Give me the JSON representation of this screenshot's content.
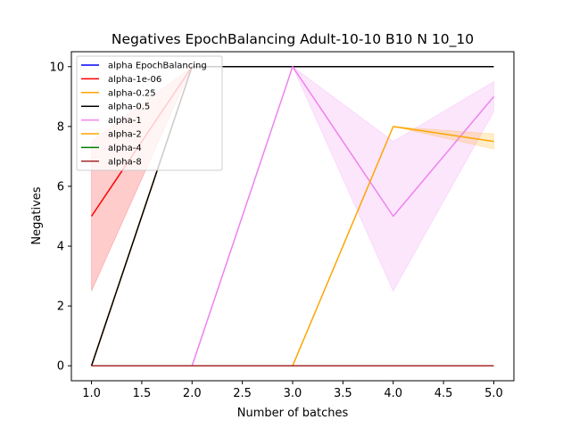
{
  "chart_data": {
    "type": "line",
    "title": "Negatives EpochBalancing Adult-10-10 B10 N 10_10",
    "xlabel": "Number of batches",
    "ylabel": "Negatives",
    "x": [
      1,
      2,
      3,
      4,
      5
    ],
    "xlim": [
      0.8,
      5.2
    ],
    "ylim": [
      -0.5,
      10.5
    ],
    "xticks": [
      "1.0",
      "1.5",
      "2.0",
      "2.5",
      "3.0",
      "3.5",
      "4.0",
      "4.5",
      "5.0"
    ],
    "yticks": [
      "0",
      "2",
      "4",
      "6",
      "8",
      "10"
    ],
    "grid": false,
    "legend_position": "top-left",
    "series": [
      {
        "name": "alpha EpochBalancing",
        "color": "#0000ff",
        "values": [
          0,
          0,
          0,
          0,
          0
        ],
        "lower": null,
        "upper": null
      },
      {
        "name": "alpha-1e-06",
        "color": "#ff0000",
        "values": [
          5,
          10,
          10,
          10,
          10
        ],
        "lower": [
          2.5,
          10,
          10,
          10,
          10
        ],
        "upper": [
          7.5,
          10,
          10,
          10,
          10
        ]
      },
      {
        "name": "alpha-0.25",
        "color": "#ffa500",
        "values": [
          0,
          10,
          10,
          10,
          10
        ],
        "lower": null,
        "upper": null
      },
      {
        "name": "alpha-0.5",
        "color": "#000000",
        "values": [
          0,
          10,
          10,
          10,
          10
        ],
        "lower": null,
        "upper": null
      },
      {
        "name": "alpha-1",
        "color": "#ee82ee",
        "values": [
          0,
          0,
          10,
          5,
          9
        ],
        "lower": [
          0,
          0,
          10,
          2.5,
          8.5
        ],
        "upper": [
          0,
          0,
          10,
          7.5,
          9.5
        ]
      },
      {
        "name": "alpha-2",
        "color": "#ffa500",
        "values": [
          0,
          0,
          0,
          8,
          7.5
        ],
        "lower": [
          0,
          0,
          0,
          8,
          7.25
        ],
        "upper": [
          0,
          0,
          0,
          8,
          7.75
        ]
      },
      {
        "name": "alpha-4",
        "color": "#008000",
        "values": [
          0,
          0,
          0,
          0,
          0
        ],
        "lower": null,
        "upper": null
      },
      {
        "name": "alpha-8",
        "color": "#a52a2a",
        "values": [
          0,
          0,
          0,
          0,
          0
        ],
        "lower": null,
        "upper": null
      }
    ]
  }
}
